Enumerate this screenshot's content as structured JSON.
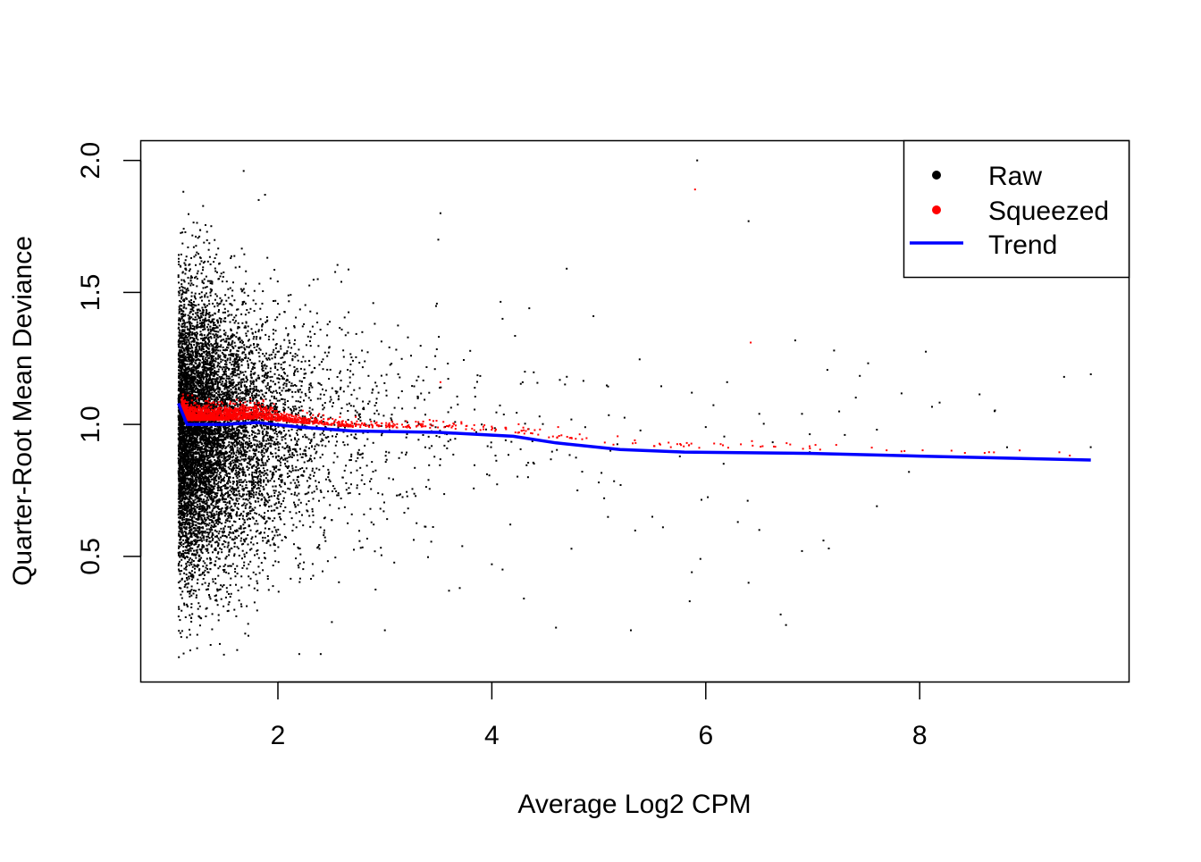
{
  "chart_data": {
    "type": "scatter",
    "title": "",
    "xlabel": "Average Log2 CPM",
    "ylabel": "Quarter-Root Mean Deviance",
    "xlim": [
      0.8,
      9.8
    ],
    "ylim": [
      0.07,
      2.05
    ],
    "x_ticks": [
      2,
      4,
      6,
      8
    ],
    "x_tick_labels": [
      "2",
      "4",
      "6",
      "8"
    ],
    "y_ticks": [
      0.5,
      1.0,
      1.5,
      2.0
    ],
    "y_tick_labels": [
      "0.5",
      "1.0",
      "1.5",
      "2.0"
    ],
    "grid": false,
    "legend": {
      "placement": "top-right",
      "entries": [
        {
          "label": "Raw",
          "type": "point",
          "color": "#000000"
        },
        {
          "label": "Squeezed",
          "type": "point",
          "color": "#ff0000"
        },
        {
          "label": "Trend",
          "type": "line",
          "color": "#0000ff"
        }
      ]
    },
    "series": [
      {
        "name": "Raw",
        "color": "#000000",
        "dense_cloud": {
          "n": 9000,
          "x_min": 1.07,
          "x_decay_mean": 0.38,
          "y_center": 0.97,
          "y_sd_low_x": 0.27,
          "y_sd_high_x": 0.2,
          "y_min": 0.1,
          "y_max": 1.97
        },
        "points": [
          [
            1.68,
            1.96
          ],
          [
            1.88,
            1.87
          ],
          [
            1.82,
            1.85
          ],
          [
            3.52,
            1.8
          ],
          [
            3.5,
            1.7
          ],
          [
            5.92,
            2.0
          ],
          [
            6.4,
            1.77
          ],
          [
            4.35,
            1.44
          ],
          [
            4.1,
            1.4
          ],
          [
            4.7,
            1.59
          ],
          [
            4.95,
            1.41
          ],
          [
            7.2,
            1.28
          ],
          [
            9.6,
            1.19
          ],
          [
            9.35,
            1.18
          ],
          [
            8.7,
            1.05
          ],
          [
            7.9,
            0.82
          ],
          [
            7.6,
            0.69
          ],
          [
            5.87,
            1.12
          ],
          [
            6.2,
            1.16
          ],
          [
            6.0,
            0.99
          ],
          [
            6.5,
            1.04
          ],
          [
            6.9,
            1.04
          ],
          [
            7.3,
            0.96
          ],
          [
            7.6,
            0.98
          ],
          [
            6.3,
            0.63
          ],
          [
            6.5,
            0.6
          ],
          [
            6.4,
            0.4
          ],
          [
            6.7,
            0.28
          ],
          [
            6.75,
            0.24
          ],
          [
            6.9,
            0.52
          ],
          [
            7.1,
            0.56
          ],
          [
            7.15,
            0.53
          ],
          [
            5.87,
            0.44
          ],
          [
            5.85,
            0.33
          ],
          [
            5.3,
            0.22
          ],
          [
            4.6,
            0.23
          ],
          [
            4.3,
            0.34
          ],
          [
            4.0,
            0.47
          ],
          [
            4.1,
            0.45
          ],
          [
            5.0,
            0.78
          ],
          [
            5.05,
            0.72
          ],
          [
            4.8,
            0.75
          ],
          [
            5.6,
            0.61
          ],
          [
            5.5,
            0.65
          ],
          [
            3.7,
            0.38
          ],
          [
            3.6,
            0.37
          ],
          [
            3.0,
            0.22
          ],
          [
            2.4,
            0.13
          ],
          [
            2.2,
            0.13
          ]
        ]
      },
      {
        "name": "Squeezed",
        "color": "#ff0000",
        "dense_band": {
          "n": 1800,
          "follows": "Trend",
          "offset_mean": 0.015,
          "offset_sd": 0.02
        },
        "points": [
          [
            5.9,
            1.89
          ],
          [
            6.42,
            1.31
          ],
          [
            3.52,
            1.16
          ],
          [
            4.62,
            0.99
          ],
          [
            1.2,
            1.11
          ]
        ]
      },
      {
        "name": "Trend",
        "color": "#0000ff",
        "x": [
          1.07,
          1.15,
          1.5,
          1.8,
          2.2,
          2.7,
          3.5,
          4.2,
          4.6,
          5.2,
          5.8,
          7.0,
          8.0,
          9.6
        ],
        "y": [
          1.08,
          1.0,
          1.0,
          1.007,
          0.99,
          0.975,
          0.97,
          0.955,
          0.93,
          0.905,
          0.895,
          0.89,
          0.88,
          0.865
        ]
      }
    ]
  }
}
